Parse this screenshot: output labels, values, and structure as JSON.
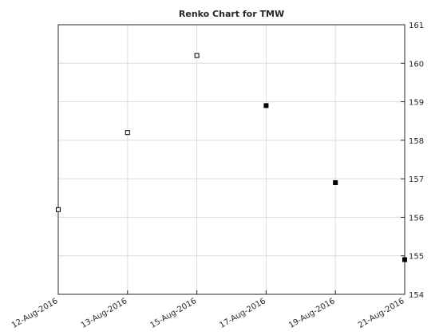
{
  "chart_data": {
    "type": "scatter",
    "title": "Renko Chart for TMW",
    "categories": [
      "12-Aug-2016",
      "13-Aug-2016",
      "15-Aug-2016",
      "17-Aug-2016",
      "19-Aug-2016",
      "21-Aug-2016"
    ],
    "values": [
      156.2,
      158.2,
      160.2,
      158.9,
      156.9,
      154.9
    ],
    "markers": [
      "open",
      "open",
      "open",
      "filled",
      "filled",
      "filled"
    ],
    "color": "#000000",
    "ylim": [
      154,
      161
    ],
    "yticks": [
      154,
      155,
      156,
      157,
      158,
      159,
      160,
      161
    ],
    "y_axis_side": "right",
    "grid": true
  }
}
